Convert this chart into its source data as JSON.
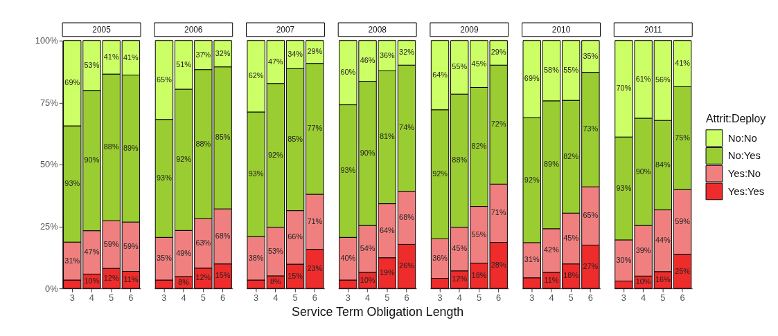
{
  "chart_data": [
    {
      "type": "bar",
      "stacked": true,
      "title": "2005",
      "categories": [
        "3",
        "4",
        "5",
        "6"
      ],
      "legend": "right",
      "legend_title": "Attrit:Deploy",
      "ylim": [
        0,
        100
      ],
      "yticks": [
        {
          "value": 0,
          "label": "0%"
        },
        {
          "value": 25,
          "label": "25%"
        },
        {
          "value": 50,
          "label": "50%"
        },
        {
          "value": 75,
          "label": "75%"
        },
        {
          "value": 100,
          "label": "100%"
        }
      ],
      "series": [
        {
          "name": "Yes:Yes",
          "color": "#ee2c2c",
          "values": [
            3.4,
            5.8,
            8.1,
            6.9
          ]
        },
        {
          "name": "Yes:No",
          "color": "#f08080",
          "values": [
            15.3,
            17.5,
            19.2,
            19.9
          ]
        },
        {
          "name": "No:Yes",
          "color": "#9acd32",
          "values": [
            46.9,
            56.6,
            59.2,
            59.3
          ]
        },
        {
          "name": "No:No",
          "color": "#ccff66",
          "values": [
            34.4,
            20.1,
            13.5,
            13.9
          ]
        }
      ],
      "annotations": [
        "10%",
        "12%",
        "11%",
        "31%",
        "47%",
        "59%",
        "59%",
        "93%",
        "90%",
        "88%",
        "89%",
        "69%",
        "53%",
        "41%",
        "41%"
      ]
    },
    {
      "type": "bar",
      "stacked": true,
      "title": "2006",
      "categories": [
        "3",
        "4",
        "5",
        "6"
      ],
      "tick_labels": "x",
      "ylim": [
        0,
        100
      ],
      "series": [
        {
          "color": "#ee2c2c",
          "values": [
            3.4,
            4.8,
            8.2,
            9.9
          ]
        },
        {
          "color": "#f08080",
          "values": [
            17.2,
            18.6,
            19.9,
            22.2
          ]
        },
        {
          "color": "#9acd32",
          "values": [
            47.6,
            57.0,
            60.2,
            57.3
          ]
        },
        {
          "color": "#ccff66",
          "values": [
            31.8,
            19.6,
            11.7,
            10.6
          ]
        }
      ],
      "annotations": [
        "8%",
        "12%",
        "15%",
        "35%",
        "49%",
        "63%",
        "68%",
        "93%",
        "92%",
        "88%",
        "85%",
        "65%",
        "51%",
        "37%",
        "32%"
      ]
    },
    {
      "type": "bar",
      "stacked": true,
      "title": "2007",
      "categories": [
        "3",
        "4",
        "5",
        "6"
      ],
      "tick_labels": "x",
      "ylim": [
        0,
        100
      ],
      "series": [
        {
          "color": "#ee2c2c",
          "values": [
            3.4,
            5.1,
            9.8,
            15.8
          ]
        },
        {
          "color": "#f08080",
          "values": [
            17.5,
            19.6,
            21.6,
            22.2
          ]
        },
        {
          "color": "#9acd32",
          "values": [
            50.3,
            58.0,
            57.3,
            52.8
          ]
        },
        {
          "color": "#ccff66",
          "values": [
            28.8,
            17.3,
            11.3,
            9.2
          ]
        }
      ],
      "annotations": [
        "8%",
        "15%",
        "23%",
        "38%",
        "53%",
        "66%",
        "71%",
        "93%",
        "92%",
        "85%",
        "77%",
        "62%",
        "47%",
        "34%",
        "29%"
      ]
    },
    {
      "type": "bar",
      "stacked": true,
      "title": "2008",
      "categories": [
        "3",
        "4",
        "5",
        "6"
      ],
      "xlabel": "Service Term Obligation Length",
      "tick_labels": "x",
      "ylim": [
        0,
        100
      ],
      "series": [
        {
          "color": "#ee2c2c",
          "values": [
            3.4,
            6.5,
            12.4,
            17.8
          ]
        },
        {
          "color": "#f08080",
          "values": [
            17.2,
            18.9,
            21.8,
            21.4
          ]
        },
        {
          "color": "#9acd32",
          "values": [
            53.5,
            58.2,
            53.6,
            50.9
          ]
        },
        {
          "color": "#ccff66",
          "values": [
            25.9,
            16.4,
            12.2,
            9.9
          ]
        }
      ],
      "annotations": [
        "10%",
        "19%",
        "26%",
        "40%",
        "54%",
        "64%",
        "68%",
        "93%",
        "90%",
        "81%",
        "74%",
        "60%",
        "46%",
        "36%",
        "32%"
      ]
    },
    {
      "type": "bar",
      "stacked": true,
      "title": "2009",
      "categories": [
        "3",
        "4",
        "5",
        "6"
      ],
      "tick_labels": "x",
      "ylim": [
        0,
        100
      ],
      "series": [
        {
          "color": "#ee2c2c",
          "values": [
            4.1,
            7.1,
            10.2,
            18.6
          ]
        },
        {
          "color": "#f08080",
          "values": [
            15.9,
            17.6,
            22.9,
            23.5
          ]
        },
        {
          "color": "#9acd32",
          "values": [
            52.1,
            53.7,
            48.0,
            48.0
          ]
        },
        {
          "color": "#ccff66",
          "values": [
            27.9,
            21.6,
            18.9,
            9.9
          ]
        }
      ],
      "annotations": [
        "12%",
        "18%",
        "28%",
        "36%",
        "45%",
        "55%",
        "71%",
        "92%",
        "88%",
        "82%",
        "72%",
        "64%",
        "55%",
        "45%",
        "29%"
      ]
    },
    {
      "type": "bar",
      "stacked": true,
      "title": "2010",
      "categories": [
        "3",
        "4",
        "5",
        "6"
      ],
      "tick_labels": "x",
      "ylim": [
        0,
        100
      ],
      "series": [
        {
          "color": "#ee2c2c",
          "values": [
            4.3,
            6.5,
            9.9,
            17.5
          ]
        },
        {
          "color": "#f08080",
          "values": [
            14.2,
            17.6,
            20.5,
            23.5
          ]
        },
        {
          "color": "#9acd32",
          "values": [
            50.4,
            51.6,
            45.5,
            46.2
          ]
        },
        {
          "color": "#ccff66",
          "values": [
            31.1,
            24.3,
            24.1,
            12.8
          ]
        }
      ],
      "annotations": [
        "11%",
        "18%",
        "27%",
        "31%",
        "42%",
        "45%",
        "65%",
        "92%",
        "89%",
        "82%",
        "73%",
        "69%",
        "58%",
        "55%",
        "35%"
      ]
    },
    {
      "type": "bar",
      "stacked": true,
      "title": "2011",
      "categories": [
        "3",
        "4",
        "5",
        "6"
      ],
      "tick_labels": "x",
      "ylim": [
        0,
        100
      ],
      "series": [
        {
          "color": "#ee2c2c",
          "values": [
            3.0,
            5.0,
            6.8,
            13.7
          ]
        },
        {
          "color": "#f08080",
          "values": [
            16.6,
            20.4,
            24.9,
            26.2
          ]
        },
        {
          "color": "#9acd32",
          "values": [
            41.5,
            43.3,
            36.1,
            41.5
          ]
        },
        {
          "color": "#ccff66",
          "values": [
            38.9,
            31.3,
            32.2,
            18.6
          ]
        }
      ],
      "annotations": [
        "10%",
        "16%",
        "25%",
        "30%",
        "39%",
        "44%",
        "59%",
        "93%",
        "90%",
        "84%",
        "75%",
        "70%",
        "61%",
        "56%",
        "41%"
      ]
    }
  ]
}
